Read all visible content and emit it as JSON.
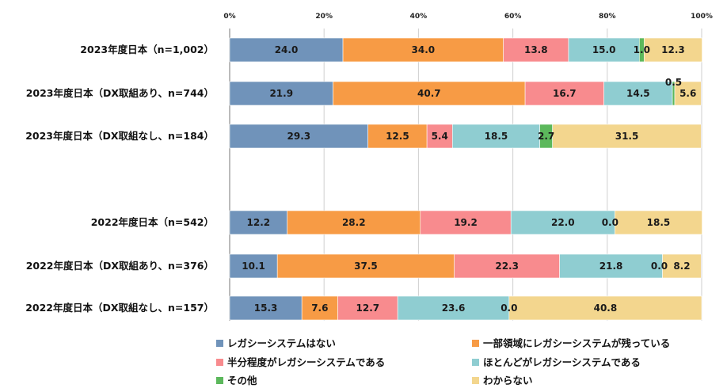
{
  "chart_data": {
    "type": "bar",
    "orientation": "horizontal",
    "stacked": true,
    "xlim": [
      0,
      100
    ],
    "x_ticks": [
      "0%",
      "20%",
      "40%",
      "60%",
      "80%",
      "100%"
    ],
    "grid": true,
    "legend_position": "bottom",
    "categories": [
      "2023年度日本（n=1,002）",
      "2023年度日本（DX取組あり、n=744）",
      "2023年度日本（DX取組なし、n=184）",
      "2022年度日本（n=542）",
      "2022年度日本（DX取組あり、n=376）",
      "2022年度日本（DX取組なし、n=157）"
    ],
    "series": [
      {
        "name": "レガシーシステムはない",
        "color": "#7093ba",
        "values": [
          24.0,
          21.9,
          29.3,
          12.2,
          10.1,
          15.3
        ]
      },
      {
        "name": "一部領域にレガシーシステムが残っている",
        "color": "#f79b45",
        "values": [
          34.0,
          40.7,
          12.5,
          28.2,
          37.5,
          7.6
        ]
      },
      {
        "name": "半分程度がレガシーシステムである",
        "color": "#f88b8e",
        "values": [
          13.8,
          16.7,
          5.4,
          19.2,
          22.3,
          12.7
        ]
      },
      {
        "name": "ほとんどがレガシーシステムである",
        "color": "#8fcdd1",
        "values": [
          15.0,
          14.5,
          18.5,
          22.0,
          21.8,
          23.6
        ]
      },
      {
        "name": "その他",
        "color": "#5cb85c",
        "values": [
          1.0,
          0.5,
          2.7,
          0.0,
          0.0,
          0.0
        ]
      },
      {
        "name": "わからない",
        "color": "#f3d68e",
        "values": [
          12.3,
          5.6,
          31.5,
          18.5,
          8.2,
          40.8
        ]
      }
    ],
    "value_labels": [
      [
        "24.0",
        "34.0",
        "13.8",
        "15.0",
        "1.0",
        "12.3"
      ],
      [
        "21.9",
        "40.7",
        "16.7",
        "14.5",
        "0.5",
        "5.6"
      ],
      [
        "29.3",
        "12.5",
        "5.4",
        "18.5",
        "2.7",
        "31.5"
      ],
      [
        "12.2",
        "28.2",
        "19.2",
        "22.0",
        "0.0",
        "18.5"
      ],
      [
        "10.1",
        "37.5",
        "22.3",
        "21.8",
        "0.0",
        "8.2"
      ],
      [
        "15.3",
        "7.6",
        "12.7",
        "23.6",
        "0.0",
        "40.8"
      ]
    ]
  }
}
